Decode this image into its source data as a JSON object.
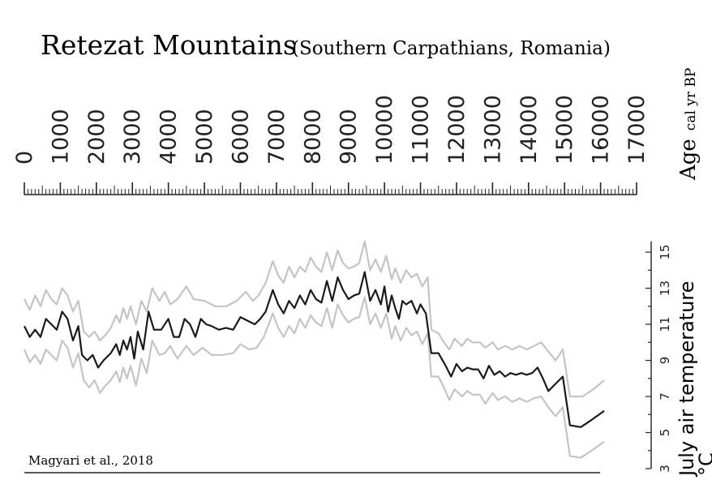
{
  "chart_data": {
    "type": "line",
    "title": "Retezat Mountains",
    "subtitle": "(Southern Carpathians, Romania)",
    "age_label": "Age",
    "age_unit": "cal yr BP",
    "ylabel": "July air temperature",
    "yunit": "°C",
    "credit": "Magyari et al., 2018",
    "age_ticks": [
      0,
      1000,
      2000,
      3000,
      4000,
      5000,
      6000,
      7000,
      8000,
      9000,
      10000,
      11000,
      12000,
      13000,
      14000,
      15000,
      16000,
      17000
    ],
    "xlim": [
      0,
      17000
    ],
    "temp_ticks": [
      3,
      5,
      7,
      9,
      11,
      13,
      15
    ],
    "ylim": [
      3,
      15.6
    ],
    "series": [
      {
        "color": "#1a1a1a",
        "points": [
          [
            0,
            10.9
          ],
          [
            150,
            10.3
          ],
          [
            300,
            10.7
          ],
          [
            450,
            10.3
          ],
          [
            600,
            11.3
          ],
          [
            750,
            11.0
          ],
          [
            900,
            10.7
          ],
          [
            1050,
            11.7
          ],
          [
            1200,
            11.3
          ],
          [
            1350,
            10.1
          ],
          [
            1500,
            10.9
          ],
          [
            1600,
            9.3
          ],
          [
            1750,
            9.0
          ],
          [
            1900,
            9.3
          ],
          [
            2050,
            8.6
          ],
          [
            2200,
            9.0
          ],
          [
            2400,
            9.4
          ],
          [
            2550,
            9.9
          ],
          [
            2650,
            9.3
          ],
          [
            2750,
            10.1
          ],
          [
            2850,
            9.6
          ],
          [
            2950,
            10.3
          ],
          [
            3050,
            9.1
          ],
          [
            3150,
            10.6
          ],
          [
            3300,
            9.6
          ],
          [
            3450,
            11.7
          ],
          [
            3600,
            10.7
          ],
          [
            3800,
            10.7
          ],
          [
            4000,
            11.3
          ],
          [
            4150,
            10.3
          ],
          [
            4300,
            10.3
          ],
          [
            4450,
            11.3
          ],
          [
            4600,
            11.0
          ],
          [
            4750,
            10.3
          ],
          [
            4900,
            11.3
          ],
          [
            5050,
            11.0
          ],
          [
            5200,
            10.9
          ],
          [
            5400,
            10.7
          ],
          [
            5600,
            10.8
          ],
          [
            5800,
            10.7
          ],
          [
            6000,
            11.4
          ],
          [
            6200,
            11.2
          ],
          [
            6400,
            11.0
          ],
          [
            6550,
            11.3
          ],
          [
            6700,
            11.7
          ],
          [
            6900,
            12.9
          ],
          [
            7050,
            12.1
          ],
          [
            7200,
            11.6
          ],
          [
            7350,
            12.3
          ],
          [
            7500,
            11.9
          ],
          [
            7650,
            12.6
          ],
          [
            7800,
            12.1
          ],
          [
            7950,
            12.9
          ],
          [
            8100,
            12.4
          ],
          [
            8250,
            12.2
          ],
          [
            8400,
            13.4
          ],
          [
            8550,
            12.3
          ],
          [
            8700,
            13.6
          ],
          [
            8850,
            12.9
          ],
          [
            9000,
            12.4
          ],
          [
            9150,
            12.6
          ],
          [
            9300,
            12.7
          ],
          [
            9450,
            13.9
          ],
          [
            9600,
            12.3
          ],
          [
            9750,
            12.9
          ],
          [
            9900,
            12.1
          ],
          [
            10000,
            13.1
          ],
          [
            10100,
            11.7
          ],
          [
            10200,
            12.6
          ],
          [
            10300,
            11.9
          ],
          [
            10400,
            11.3
          ],
          [
            10500,
            12.3
          ],
          [
            10600,
            12.1
          ],
          [
            10750,
            12.3
          ],
          [
            10900,
            11.6
          ],
          [
            11000,
            12.1
          ],
          [
            11150,
            11.6
          ],
          [
            11300,
            9.4
          ],
          [
            11500,
            9.4
          ],
          [
            11700,
            8.7
          ],
          [
            11850,
            8.1
          ],
          [
            12000,
            8.8
          ],
          [
            12150,
            8.4
          ],
          [
            12300,
            8.6
          ],
          [
            12450,
            8.5
          ],
          [
            12600,
            8.5
          ],
          [
            12750,
            8.0
          ],
          [
            12900,
            8.7
          ],
          [
            13050,
            8.2
          ],
          [
            13200,
            8.4
          ],
          [
            13350,
            8.1
          ],
          [
            13500,
            8.3
          ],
          [
            13650,
            8.2
          ],
          [
            13800,
            8.3
          ],
          [
            13950,
            8.2
          ],
          [
            14100,
            8.3
          ],
          [
            14250,
            8.6
          ],
          [
            14400,
            8.0
          ],
          [
            14550,
            7.3
          ],
          [
            14750,
            7.7
          ],
          [
            14950,
            8.1
          ],
          [
            15150,
            5.4
          ],
          [
            15450,
            5.3
          ],
          [
            15750,
            5.7
          ],
          [
            16100,
            6.2
          ]
        ]
      },
      {
        "color": "#c4c4c4",
        "points": [
          [
            0,
            12.4
          ],
          [
            150,
            11.8
          ],
          [
            300,
            12.6
          ],
          [
            450,
            12.0
          ],
          [
            600,
            12.9
          ],
          [
            750,
            12.4
          ],
          [
            900,
            12.1
          ],
          [
            1050,
            13.0
          ],
          [
            1200,
            12.6
          ],
          [
            1350,
            11.7
          ],
          [
            1500,
            12.3
          ],
          [
            1650,
            10.6
          ],
          [
            1800,
            10.3
          ],
          [
            1950,
            10.6
          ],
          [
            2100,
            10.1
          ],
          [
            2250,
            10.4
          ],
          [
            2400,
            10.8
          ],
          [
            2550,
            11.5
          ],
          [
            2650,
            11.1
          ],
          [
            2750,
            11.9
          ],
          [
            2850,
            11.3
          ],
          [
            2950,
            12.0
          ],
          [
            3100,
            11.0
          ],
          [
            3250,
            12.3
          ],
          [
            3400,
            11.7
          ],
          [
            3550,
            13.0
          ],
          [
            3750,
            12.3
          ],
          [
            3900,
            12.8
          ],
          [
            4050,
            12.1
          ],
          [
            4250,
            12.4
          ],
          [
            4500,
            13.1
          ],
          [
            4700,
            12.4
          ],
          [
            5000,
            12.3
          ],
          [
            5300,
            12.0
          ],
          [
            5600,
            12.0
          ],
          [
            5900,
            12.3
          ],
          [
            6150,
            12.8
          ],
          [
            6350,
            12.3
          ],
          [
            6500,
            12.6
          ],
          [
            6700,
            13.3
          ],
          [
            6900,
            14.5
          ],
          [
            7050,
            13.7
          ],
          [
            7200,
            13.3
          ],
          [
            7350,
            14.2
          ],
          [
            7500,
            13.6
          ],
          [
            7650,
            14.2
          ],
          [
            7800,
            13.9
          ],
          [
            7950,
            14.7
          ],
          [
            8100,
            14.2
          ],
          [
            8250,
            13.9
          ],
          [
            8400,
            15.0
          ],
          [
            8550,
            14.0
          ],
          [
            8700,
            15.1
          ],
          [
            8850,
            14.4
          ],
          [
            9000,
            14.1
          ],
          [
            9150,
            14.2
          ],
          [
            9300,
            14.4
          ],
          [
            9450,
            15.6
          ],
          [
            9600,
            14.0
          ],
          [
            9750,
            14.6
          ],
          [
            9900,
            13.9
          ],
          [
            10050,
            14.8
          ],
          [
            10200,
            13.5
          ],
          [
            10300,
            14.1
          ],
          [
            10450,
            13.3
          ],
          [
            10600,
            14.0
          ],
          [
            10750,
            13.6
          ],
          [
            10900,
            13.8
          ],
          [
            11050,
            13.1
          ],
          [
            11200,
            13.6
          ],
          [
            11300,
            10.7
          ],
          [
            11500,
            10.5
          ],
          [
            11650,
            10.0
          ],
          [
            11800,
            9.6
          ],
          [
            11950,
            10.2
          ],
          [
            12150,
            9.8
          ],
          [
            12300,
            10.2
          ],
          [
            12450,
            10.0
          ],
          [
            12650,
            10.0
          ],
          [
            12800,
            9.7
          ],
          [
            13000,
            10.0
          ],
          [
            13150,
            9.6
          ],
          [
            13350,
            9.8
          ],
          [
            13550,
            9.6
          ],
          [
            13750,
            9.8
          ],
          [
            13950,
            9.6
          ],
          [
            14150,
            9.8
          ],
          [
            14350,
            10.0
          ],
          [
            14550,
            9.5
          ],
          [
            14750,
            9.0
          ],
          [
            14950,
            9.6
          ],
          [
            15150,
            7.0
          ],
          [
            15500,
            7.0
          ],
          [
            15800,
            7.4
          ],
          [
            16100,
            7.9
          ]
        ]
      },
      {
        "color": "#c4c4c4",
        "points": [
          [
            0,
            9.6
          ],
          [
            150,
            8.9
          ],
          [
            300,
            9.3
          ],
          [
            450,
            8.8
          ],
          [
            600,
            9.6
          ],
          [
            750,
            9.3
          ],
          [
            900,
            9.0
          ],
          [
            1050,
            10.1
          ],
          [
            1200,
            9.7
          ],
          [
            1350,
            8.6
          ],
          [
            1500,
            9.4
          ],
          [
            1650,
            7.9
          ],
          [
            1800,
            7.5
          ],
          [
            1950,
            7.9
          ],
          [
            2100,
            7.2
          ],
          [
            2250,
            7.6
          ],
          [
            2400,
            7.9
          ],
          [
            2550,
            8.4
          ],
          [
            2650,
            7.8
          ],
          [
            2750,
            8.6
          ],
          [
            2850,
            8.0
          ],
          [
            2950,
            8.7
          ],
          [
            3100,
            7.6
          ],
          [
            3250,
            9.1
          ],
          [
            3400,
            8.3
          ],
          [
            3550,
            10.1
          ],
          [
            3750,
            9.3
          ],
          [
            3900,
            9.4
          ],
          [
            4050,
            9.8
          ],
          [
            4250,
            9.1
          ],
          [
            4500,
            9.8
          ],
          [
            4700,
            9.3
          ],
          [
            4950,
            9.7
          ],
          [
            5200,
            9.3
          ],
          [
            5500,
            9.3
          ],
          [
            5800,
            9.4
          ],
          [
            6000,
            9.9
          ],
          [
            6250,
            9.6
          ],
          [
            6450,
            9.7
          ],
          [
            6650,
            10.3
          ],
          [
            6900,
            11.6
          ],
          [
            7050,
            10.8
          ],
          [
            7200,
            10.3
          ],
          [
            7350,
            10.9
          ],
          [
            7500,
            10.5
          ],
          [
            7650,
            11.3
          ],
          [
            7800,
            10.8
          ],
          [
            7950,
            11.5
          ],
          [
            8100,
            11.1
          ],
          [
            8250,
            10.9
          ],
          [
            8400,
            11.9
          ],
          [
            8550,
            10.8
          ],
          [
            8700,
            12.1
          ],
          [
            8850,
            11.5
          ],
          [
            9000,
            11.1
          ],
          [
            9150,
            11.3
          ],
          [
            9300,
            11.4
          ],
          [
            9450,
            12.5
          ],
          [
            9600,
            11.0
          ],
          [
            9750,
            11.6
          ],
          [
            9900,
            10.8
          ],
          [
            10050,
            11.6
          ],
          [
            10200,
            10.2
          ],
          [
            10300,
            10.9
          ],
          [
            10450,
            10.1
          ],
          [
            10600,
            10.8
          ],
          [
            10750,
            10.4
          ],
          [
            10900,
            10.6
          ],
          [
            11050,
            9.9
          ],
          [
            11200,
            10.5
          ],
          [
            11300,
            8.1
          ],
          [
            11500,
            8.1
          ],
          [
            11650,
            7.5
          ],
          [
            11800,
            6.8
          ],
          [
            11950,
            7.4
          ],
          [
            12150,
            7.0
          ],
          [
            12300,
            7.3
          ],
          [
            12450,
            7.1
          ],
          [
            12650,
            7.1
          ],
          [
            12800,
            6.6
          ],
          [
            13000,
            7.2
          ],
          [
            13150,
            6.8
          ],
          [
            13350,
            7.0
          ],
          [
            13550,
            6.7
          ],
          [
            13750,
            6.9
          ],
          [
            13950,
            6.7
          ],
          [
            14150,
            6.9
          ],
          [
            14350,
            7.0
          ],
          [
            14550,
            6.4
          ],
          [
            14750,
            5.9
          ],
          [
            14950,
            6.4
          ],
          [
            15150,
            3.7
          ],
          [
            15450,
            3.6
          ],
          [
            15750,
            4.0
          ],
          [
            16100,
            4.5
          ]
        ]
      }
    ]
  }
}
